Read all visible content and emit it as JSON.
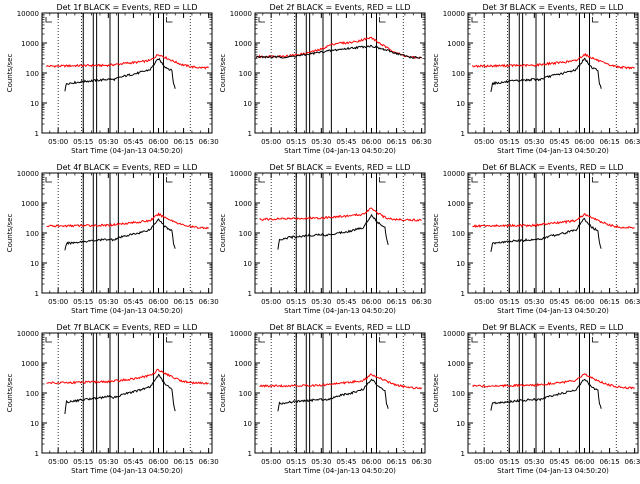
{
  "figure": {
    "xlabel": "Start Time (04-Jan-13 04:50:20)",
    "ylabel": "Counts/sec",
    "xticks": [
      "05:00",
      "05:15",
      "05:30",
      "05:45",
      "06:00",
      "06:15",
      "06:30"
    ],
    "yticks": [
      "1",
      "10",
      "100",
      "1000",
      "10000"
    ],
    "colors": {
      "events": "#000000",
      "lld": "#ff0000",
      "axes": "#000000",
      "background": "#ffffff"
    }
  },
  "chart_data": [
    {
      "type": "line",
      "title": "Det 1f BLACK = Events, RED = LLD",
      "yscale": "log",
      "ylim": [
        1,
        10000
      ],
      "xlim": [
        "04:50:20",
        "06:32:00"
      ],
      "dotted_vlines": [
        "05:00",
        "05:14",
        "06:19"
      ],
      "solid_vlines": [
        "05:15",
        "05:21",
        "05:23",
        "05:31",
        "05:36",
        "05:57",
        "06:03"
      ],
      "series": [
        {
          "color": "#ff0000",
          "x": [
            "04:53",
            "05:00",
            "05:10",
            "05:20",
            "05:30",
            "05:40",
            "05:48",
            "05:55",
            "06:00",
            "06:04",
            "06:08",
            "06:14",
            "06:20",
            "06:25",
            "06:30"
          ],
          "values": [
            170,
            170,
            175,
            178,
            180,
            210,
            230,
            260,
            420,
            330,
            260,
            190,
            160,
            150,
            150
          ]
        },
        {
          "color": "#000000",
          "x": [
            "05:04",
            "05:05",
            "05:10",
            "05:15",
            "05:20",
            "05:25",
            "05:30",
            "05:33",
            "05:40",
            "05:48",
            "05:55",
            "06:00",
            "06:04",
            "06:08",
            "06:09",
            "06:10"
          ],
          "values": [
            25,
            45,
            48,
            52,
            55,
            58,
            62,
            60,
            80,
            100,
            130,
            300,
            160,
            120,
            45,
            30
          ]
        }
      ]
    },
    {
      "type": "line",
      "title": "Det 2f BLACK = Events, RED = LLD",
      "yscale": "log",
      "ylim": [
        1,
        10000
      ],
      "xlim": [
        "04:50:20",
        "06:32:00"
      ],
      "dotted_vlines": [
        "05:00",
        "05:14",
        "06:19"
      ],
      "solid_vlines": [
        "05:15",
        "05:21",
        "05:23",
        "05:31",
        "05:36",
        "05:57",
        "06:03"
      ],
      "series": [
        {
          "color": "#ff0000",
          "x": [
            "04:51",
            "05:00",
            "05:10",
            "05:20",
            "05:30",
            "05:35",
            "05:40",
            "05:45",
            "05:50",
            "05:55",
            "06:00",
            "06:04",
            "06:10",
            "06:18",
            "06:24",
            "06:30"
          ],
          "values": [
            350,
            360,
            370,
            440,
            620,
            850,
            1000,
            1000,
            1100,
            1300,
            1500,
            1050,
            650,
            400,
            330,
            320
          ]
        },
        {
          "color": "#000000",
          "x": [
            "04:51",
            "05:00",
            "05:10",
            "05:20",
            "05:30",
            "05:40",
            "05:50",
            "05:55",
            "06:00",
            "06:04",
            "06:10",
            "06:18",
            "06:24",
            "06:30"
          ],
          "values": [
            340,
            340,
            340,
            400,
            500,
            600,
            700,
            750,
            800,
            680,
            550,
            400,
            330,
            320
          ]
        }
      ]
    },
    {
      "type": "line",
      "title": "Det 3f BLACK = Events, RED = LLD",
      "yscale": "log",
      "ylim": [
        1,
        10000
      ],
      "xlim": [
        "04:50:20",
        "06:32:00"
      ],
      "dotted_vlines": [
        "05:00",
        "05:14",
        "06:19"
      ],
      "solid_vlines": [
        "05:15",
        "05:21",
        "05:23",
        "05:31",
        "05:36",
        "05:57",
        "06:03"
      ],
      "series": [
        {
          "color": "#ff0000",
          "x": [
            "04:53",
            "05:00",
            "05:10",
            "05:20",
            "05:30",
            "05:40",
            "05:48",
            "05:55",
            "06:00",
            "06:04",
            "06:08",
            "06:14",
            "06:20",
            "06:25",
            "06:30"
          ],
          "values": [
            170,
            170,
            175,
            178,
            180,
            210,
            230,
            260,
            420,
            330,
            260,
            190,
            160,
            150,
            150
          ]
        },
        {
          "color": "#000000",
          "x": [
            "05:04",
            "05:05",
            "05:10",
            "05:15",
            "05:20",
            "05:25",
            "05:30",
            "05:33",
            "05:40",
            "05:48",
            "05:55",
            "06:00",
            "06:04",
            "06:08",
            "06:09",
            "06:10"
          ],
          "values": [
            25,
            45,
            48,
            52,
            55,
            58,
            62,
            60,
            80,
            100,
            130,
            300,
            160,
            120,
            45,
            30
          ]
        }
      ]
    },
    {
      "type": "line",
      "title": "Det 4f BLACK = Events, RED = LLD",
      "yscale": "log",
      "ylim": [
        1,
        10000
      ],
      "xlim": [
        "04:50:20",
        "06:32:00"
      ],
      "dotted_vlines": [
        "05:00",
        "05:14",
        "06:19"
      ],
      "solid_vlines": [
        "05:15",
        "05:21",
        "05:23",
        "05:31",
        "05:36",
        "05:57",
        "06:03"
      ],
      "series": [
        {
          "color": "#ff0000",
          "x": [
            "04:53",
            "05:00",
            "05:10",
            "05:20",
            "05:30",
            "05:40",
            "05:48",
            "05:55",
            "06:00",
            "06:04",
            "06:08",
            "06:14",
            "06:20",
            "06:25",
            "06:30"
          ],
          "values": [
            170,
            170,
            175,
            178,
            180,
            210,
            230,
            260,
            420,
            330,
            260,
            190,
            160,
            150,
            150
          ]
        },
        {
          "color": "#000000",
          "x": [
            "05:04",
            "05:05",
            "05:10",
            "05:15",
            "05:20",
            "05:25",
            "05:30",
            "05:33",
            "05:40",
            "05:48",
            "05:55",
            "06:00",
            "06:04",
            "06:08",
            "06:09",
            "06:10"
          ],
          "values": [
            25,
            45,
            48,
            52,
            55,
            58,
            62,
            60,
            80,
            100,
            130,
            300,
            160,
            120,
            45,
            30
          ]
        }
      ]
    },
    {
      "type": "line",
      "title": "Det 5f BLACK = Events, RED = LLD",
      "yscale": "log",
      "ylim": [
        1,
        10000
      ],
      "xlim": [
        "04:50:20",
        "06:32:00"
      ],
      "dotted_vlines": [
        "05:00",
        "05:14",
        "06:19"
      ],
      "solid_vlines": [
        "05:15",
        "05:21",
        "05:23",
        "05:31",
        "05:36",
        "05:57",
        "06:03"
      ],
      "series": [
        {
          "color": "#ff0000",
          "x": [
            "04:53",
            "05:00",
            "05:10",
            "05:20",
            "05:30",
            "05:40",
            "05:48",
            "05:55",
            "06:00",
            "06:04",
            "06:08",
            "06:14",
            "06:20",
            "06:25",
            "06:30"
          ],
          "values": [
            280,
            290,
            300,
            310,
            320,
            350,
            380,
            420,
            700,
            450,
            330,
            280,
            280,
            270,
            270
          ]
        },
        {
          "color": "#000000",
          "x": [
            "05:04",
            "05:05",
            "05:10",
            "05:15",
            "05:20",
            "05:25",
            "05:30",
            "05:33",
            "05:40",
            "05:48",
            "05:55",
            "06:00",
            "06:04",
            "06:08",
            "06:09",
            "06:10"
          ],
          "values": [
            28,
            60,
            70,
            75,
            80,
            85,
            90,
            85,
            100,
            120,
            150,
            400,
            220,
            150,
            70,
            40
          ]
        }
      ]
    },
    {
      "type": "line",
      "title": "Det 6f BLACK = Events, RED = LLD",
      "yscale": "log",
      "ylim": [
        1,
        10000
      ],
      "xlim": [
        "04:50:20",
        "06:32:00"
      ],
      "dotted_vlines": [
        "05:00",
        "05:14",
        "06:19"
      ],
      "solid_vlines": [
        "05:15",
        "05:21",
        "05:23",
        "05:31",
        "05:36",
        "05:57",
        "06:03"
      ],
      "series": [
        {
          "color": "#ff0000",
          "x": [
            "04:53",
            "05:00",
            "05:10",
            "05:20",
            "05:30",
            "05:40",
            "05:48",
            "05:55",
            "06:00",
            "06:04",
            "06:08",
            "06:14",
            "06:20",
            "06:25",
            "06:30"
          ],
          "values": [
            170,
            170,
            175,
            178,
            180,
            210,
            230,
            260,
            420,
            330,
            260,
            190,
            160,
            150,
            150
          ]
        },
        {
          "color": "#000000",
          "x": [
            "05:04",
            "05:05",
            "05:10",
            "05:15",
            "05:20",
            "05:25",
            "05:30",
            "05:33",
            "05:40",
            "05:48",
            "05:55",
            "06:00",
            "06:04",
            "06:08",
            "06:09",
            "06:10"
          ],
          "values": [
            25,
            45,
            48,
            52,
            55,
            58,
            62,
            60,
            80,
            100,
            130,
            300,
            160,
            120,
            45,
            30
          ]
        }
      ]
    },
    {
      "type": "line",
      "title": "Det 7f BLACK = Events, RED = LLD",
      "yscale": "log",
      "ylim": [
        1,
        10000
      ],
      "xlim": [
        "04:50:20",
        "06:32:00"
      ],
      "dotted_vlines": [
        "05:00",
        "05:14",
        "06:19"
      ],
      "solid_vlines": [
        "05:15",
        "05:21",
        "05:23",
        "05:31",
        "05:36",
        "05:57",
        "06:03"
      ],
      "series": [
        {
          "color": "#ff0000",
          "x": [
            "04:53",
            "05:00",
            "05:10",
            "05:20",
            "05:30",
            "05:40",
            "05:48",
            "05:55",
            "06:00",
            "06:04",
            "06:08",
            "06:14",
            "06:20",
            "06:25",
            "06:30"
          ],
          "values": [
            220,
            220,
            225,
            230,
            240,
            270,
            320,
            380,
            600,
            450,
            350,
            250,
            220,
            210,
            210
          ]
        },
        {
          "color": "#000000",
          "x": [
            "05:04",
            "05:05",
            "05:10",
            "05:15",
            "05:20",
            "05:25",
            "05:30",
            "05:33",
            "05:40",
            "05:48",
            "05:55",
            "06:00",
            "06:04",
            "06:08",
            "06:09",
            "06:10"
          ],
          "values": [
            20,
            50,
            55,
            60,
            65,
            70,
            75,
            70,
            95,
            120,
            160,
            400,
            200,
            140,
            45,
            25
          ]
        }
      ]
    },
    {
      "type": "line",
      "title": "Det 8f BLACK = Events, RED = LLD",
      "yscale": "log",
      "ylim": [
        1,
        10000
      ],
      "xlim": [
        "04:50:20",
        "06:32:00"
      ],
      "dotted_vlines": [
        "05:00",
        "05:14",
        "06:19"
      ],
      "solid_vlines": [
        "05:15",
        "05:21",
        "05:23",
        "05:31",
        "05:36",
        "05:57",
        "06:03"
      ],
      "series": [
        {
          "color": "#ff0000",
          "x": [
            "04:53",
            "05:00",
            "05:10",
            "05:20",
            "05:30",
            "05:40",
            "05:48",
            "05:55",
            "06:00",
            "06:04",
            "06:08",
            "06:14",
            "06:20",
            "06:25",
            "06:30"
          ],
          "values": [
            170,
            170,
            175,
            178,
            180,
            210,
            230,
            260,
            420,
            330,
            260,
            190,
            160,
            150,
            150
          ]
        },
        {
          "color": "#000000",
          "x": [
            "05:04",
            "05:05",
            "05:10",
            "05:15",
            "05:20",
            "05:25",
            "05:30",
            "05:33",
            "05:40",
            "05:48",
            "05:55",
            "06:00",
            "06:04",
            "06:08",
            "06:09",
            "06:10"
          ],
          "values": [
            25,
            45,
            48,
            52,
            55,
            58,
            62,
            60,
            80,
            100,
            130,
            300,
            160,
            120,
            45,
            30
          ]
        }
      ]
    },
    {
      "type": "line",
      "title": "Det 9f BLACK = Events, RED = LLD",
      "yscale": "log",
      "ylim": [
        1,
        10000
      ],
      "xlim": [
        "04:50:20",
        "06:32:00"
      ],
      "dotted_vlines": [
        "05:00",
        "05:14",
        "06:19"
      ],
      "solid_vlines": [
        "05:15",
        "05:21",
        "05:23",
        "05:31",
        "05:36",
        "05:57",
        "06:03"
      ],
      "series": [
        {
          "color": "#ff0000",
          "x": [
            "04:53",
            "05:00",
            "05:10",
            "05:20",
            "05:30",
            "05:40",
            "05:48",
            "05:55",
            "06:00",
            "06:04",
            "06:08",
            "06:14",
            "06:20",
            "06:25",
            "06:30"
          ],
          "values": [
            170,
            170,
            175,
            178,
            180,
            210,
            230,
            260,
            420,
            330,
            260,
            190,
            160,
            150,
            150
          ]
        },
        {
          "color": "#000000",
          "x": [
            "05:04",
            "05:05",
            "05:10",
            "05:15",
            "05:20",
            "05:25",
            "05:30",
            "05:33",
            "05:40",
            "05:48",
            "05:55",
            "06:00",
            "06:04",
            "06:08",
            "06:09",
            "06:10"
          ],
          "values": [
            25,
            45,
            48,
            52,
            55,
            58,
            62,
            60,
            80,
            100,
            130,
            300,
            160,
            120,
            45,
            30
          ]
        }
      ]
    }
  ]
}
